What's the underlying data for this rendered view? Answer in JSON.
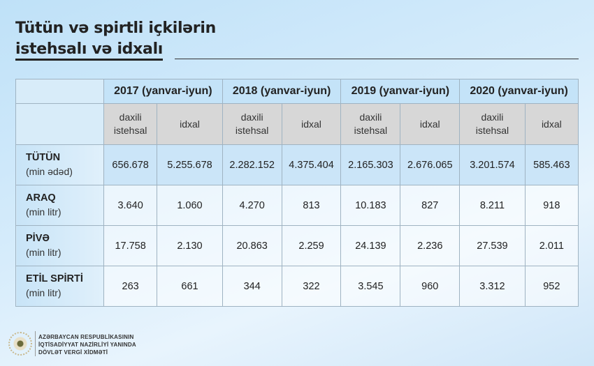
{
  "title": {
    "line1": "Tütün və spirtli içkilərin",
    "line2": "istehsalı və idxalı"
  },
  "years": [
    "2017 (yanvar-iyun)",
    "2018 (yanvar-iyun)",
    "2019 (yanvar-iyun)",
    "2020 (yanvar-iyun)"
  ],
  "sub": {
    "domestic_l1": "daxili",
    "domestic_l2": "istehsal",
    "import": "idxal"
  },
  "rows": [
    {
      "name": "TÜTÜN",
      "unit": "(min ədəd)",
      "values": [
        "656.678",
        "5.255.678",
        "2.282.152",
        "4.375.404",
        "2.165.303",
        "2.676.065",
        "3.201.574",
        "585.463"
      ]
    },
    {
      "name": "ARAQ",
      "unit": "(min litr)",
      "values": [
        "3.640",
        "1.060",
        "4.270",
        "813",
        "10.183",
        "827",
        "8.211",
        "918"
      ]
    },
    {
      "name": "PİVƏ",
      "unit": "(min litr)",
      "values": [
        "17.758",
        "2.130",
        "20.863",
        "2.259",
        "24.139",
        "2.236",
        "27.539",
        "2.011"
      ]
    },
    {
      "name": "ETİL SPİRTİ",
      "unit": "(min litr)",
      "values": [
        "263",
        "661",
        "344",
        "322",
        "3.545",
        "960",
        "3.312",
        "952"
      ]
    }
  ],
  "org": {
    "l1": "AZƏRBAYCAN RESPUBLİKASININ",
    "l2": "İQTİSADİYYAT NAZİRLİYİ YANINDA",
    "l3": "DÖVLƏT VERGİ XİDMƏTİ"
  }
}
